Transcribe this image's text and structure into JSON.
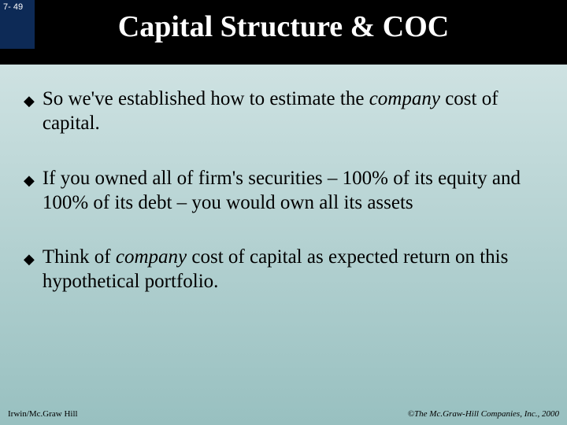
{
  "page_number": "7- 49",
  "title": "Capital Structure & COC",
  "bullets": [
    {
      "pre": "So we've established how to estimate the ",
      "em": "company",
      "post": " cost of capital."
    },
    {
      "pre": "If you owned all of firm's securities – 100% of its equity and 100% of its debt – you would own all its assets",
      "em": "",
      "post": ""
    },
    {
      "pre": "Think of ",
      "em": "company",
      "post": " cost of capital as expected return on this hypothetical portfolio."
    }
  ],
  "footer_left": "Irwin/Mc.Graw Hill",
  "footer_right": "©The Mc.Graw-Hill Companies, Inc., 2000",
  "bullet_marker": "◆"
}
